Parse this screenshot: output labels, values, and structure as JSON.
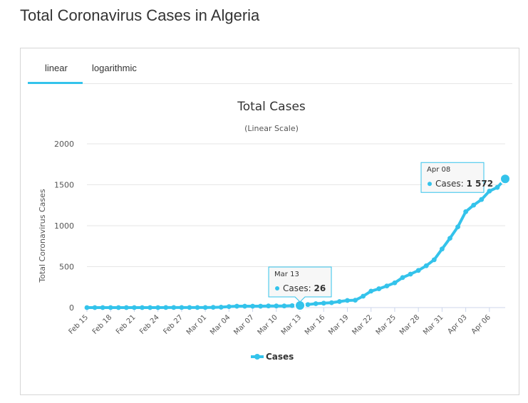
{
  "page": {
    "title": "Total Coronavirus Cases in Algeria"
  },
  "tabs": [
    {
      "label": "linear",
      "active": true
    },
    {
      "label": "logarithmic",
      "active": false
    }
  ],
  "colors": {
    "series": "#34c3eb",
    "accent": "#34c3eb",
    "grid": "#e6e6e6"
  },
  "chart_data": {
    "type": "line",
    "title": "Total Cases",
    "subtitle": "(Linear Scale)",
    "ylabel": "Total Coronavirus Cases",
    "xlabel": "",
    "ylim": [
      0,
      2000
    ],
    "yticks": [
      0,
      500,
      1000,
      1500,
      2000
    ],
    "xtick_labels": [
      "Feb 15",
      "Feb 18",
      "Feb 21",
      "Feb 24",
      "Feb 27",
      "Mar 01",
      "Mar 04",
      "Mar 07",
      "Mar 10",
      "Mar 13",
      "Mar 16",
      "Mar 19",
      "Mar 22",
      "Mar 25",
      "Mar 28",
      "Mar 31",
      "Apr 03",
      "Apr 06"
    ],
    "grid": true,
    "legend_position": "bottom-center",
    "series": [
      {
        "name": "Cases",
        "x": [
          "Feb 15",
          "Feb 16",
          "Feb 17",
          "Feb 18",
          "Feb 19",
          "Feb 20",
          "Feb 21",
          "Feb 22",
          "Feb 23",
          "Feb 24",
          "Feb 25",
          "Feb 26",
          "Feb 27",
          "Feb 28",
          "Feb 29",
          "Mar 01",
          "Mar 02",
          "Mar 03",
          "Mar 04",
          "Mar 05",
          "Mar 06",
          "Mar 07",
          "Mar 08",
          "Mar 09",
          "Mar 10",
          "Mar 11",
          "Mar 12",
          "Mar 13",
          "Mar 14",
          "Mar 15",
          "Mar 16",
          "Mar 17",
          "Mar 18",
          "Mar 19",
          "Mar 20",
          "Mar 21",
          "Mar 22",
          "Mar 23",
          "Mar 24",
          "Mar 25",
          "Mar 26",
          "Mar 27",
          "Mar 28",
          "Mar 29",
          "Mar 30",
          "Mar 31",
          "Apr 01",
          "Apr 02",
          "Apr 03",
          "Apr 04",
          "Apr 05",
          "Apr 06",
          "Apr 07",
          "Apr 08"
        ],
        "values": [
          0,
          0,
          0,
          0,
          0,
          0,
          0,
          0,
          0,
          0,
          1,
          1,
          1,
          1,
          1,
          1,
          3,
          5,
          12,
          17,
          17,
          17,
          17,
          20,
          20,
          20,
          24,
          26,
          37,
          48,
          54,
          60,
          74,
          87,
          90,
          139,
          201,
          230,
          264,
          302,
          367,
          409,
          454,
          511,
          584,
          716,
          847,
          986,
          1171,
          1251,
          1320,
          1423,
          1468,
          1572
        ]
      }
    ],
    "tooltips": [
      {
        "date": "Mar 13",
        "label": "Cases",
        "value": "26"
      },
      {
        "date": "Apr 08",
        "label": "Cases",
        "value": "1 572"
      }
    ]
  }
}
